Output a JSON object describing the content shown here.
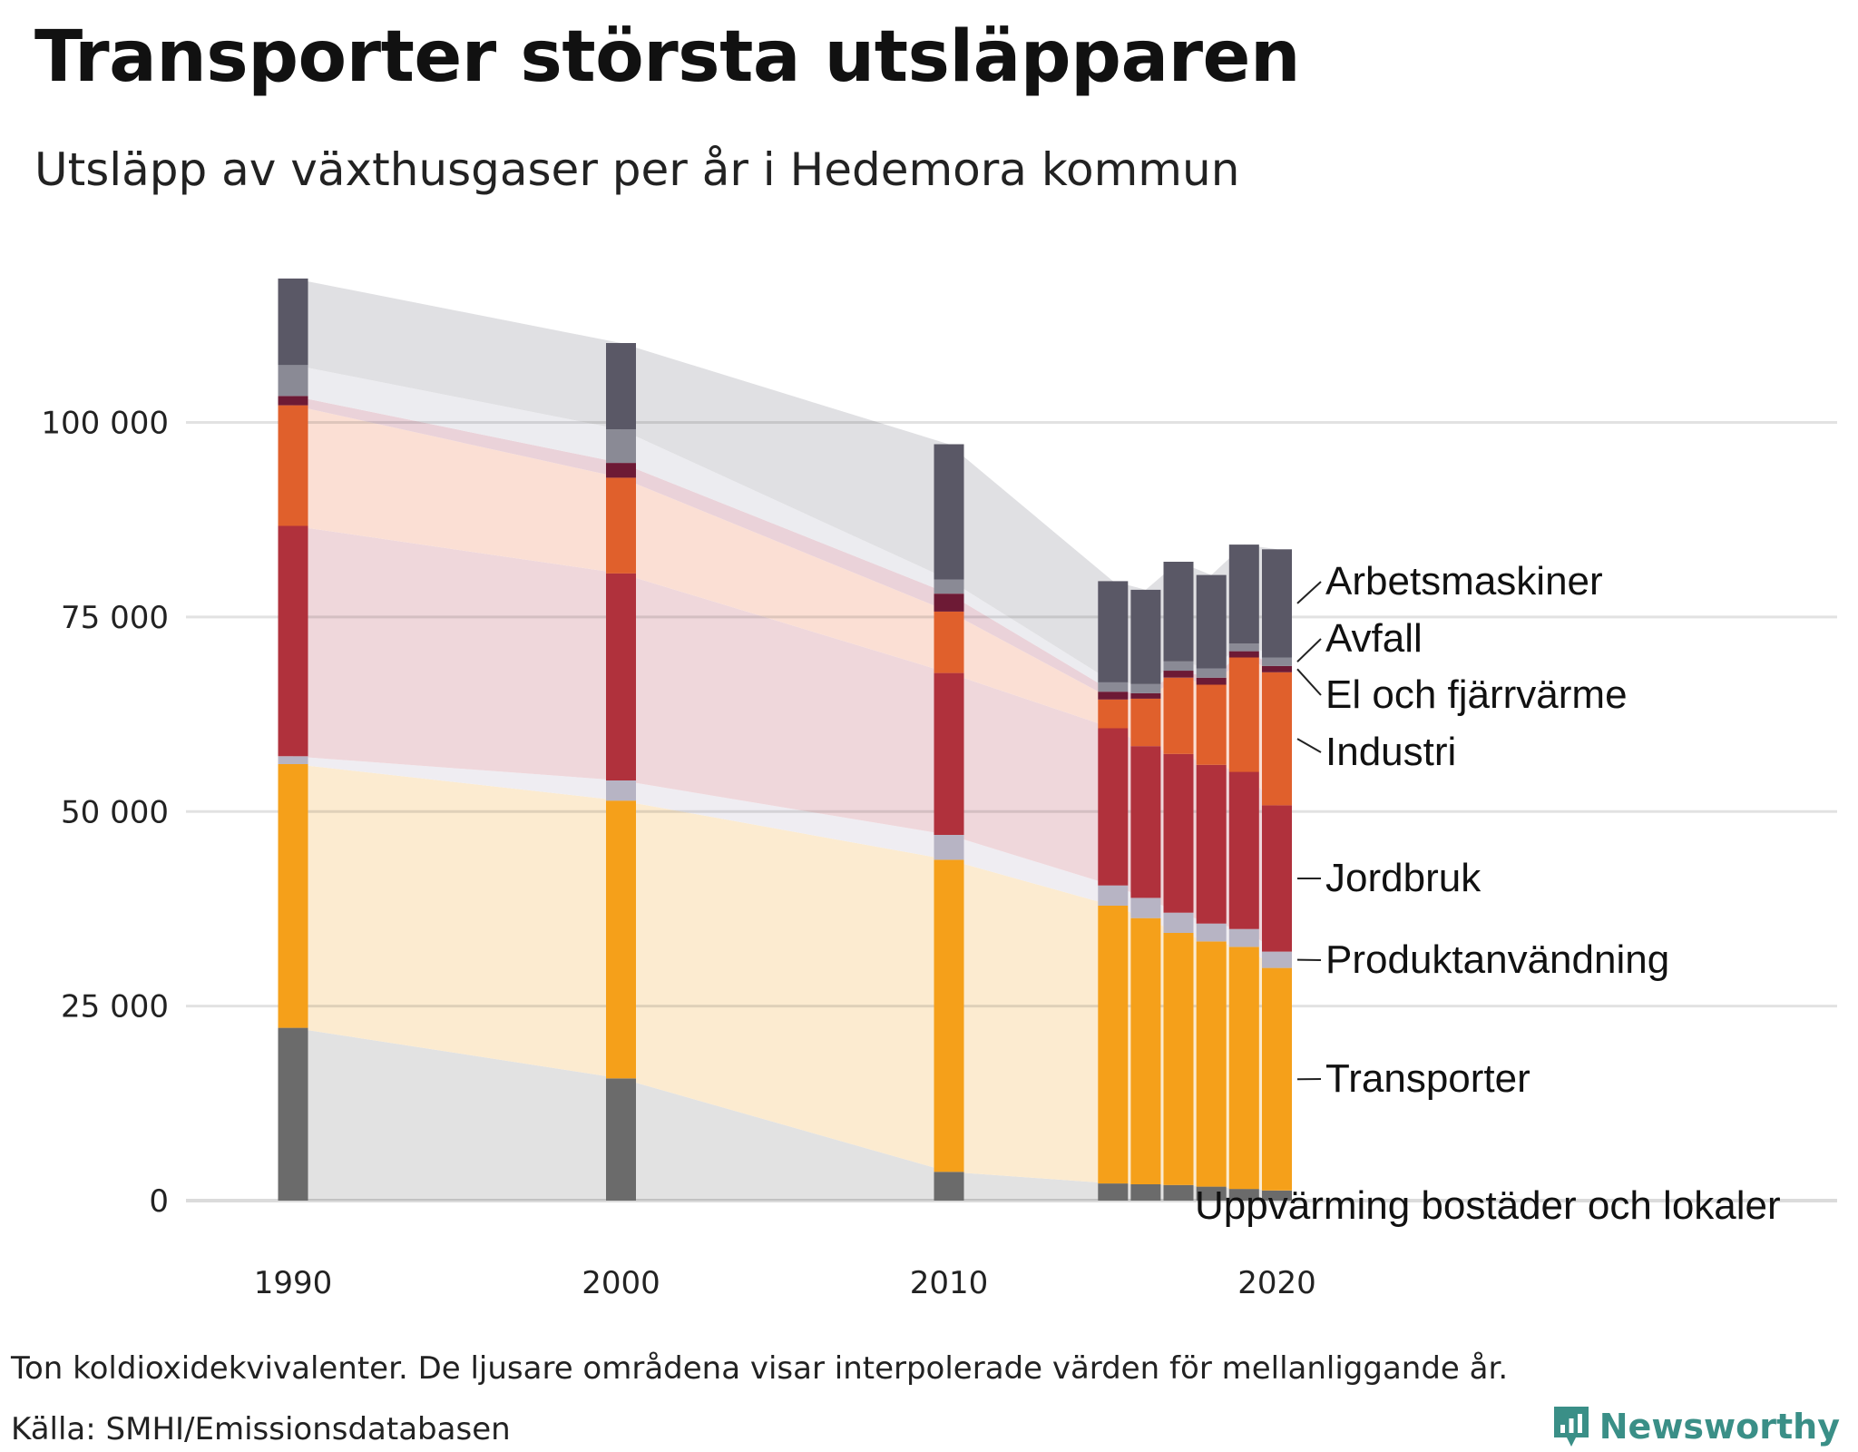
{
  "title": "Transporter största utsläpparen",
  "subtitle": "Utsläpp av växthusgaser per år i Hedemora kommun",
  "footnote": "Ton koldioxidekvivalenter. De ljusare områdena visar interpolerade värden för mellanliggande år.",
  "source": "Källa: SMHI/Emissionsdatabasen",
  "brand": {
    "name": "Newsworthy",
    "icon": "newsworthy-logo-icon",
    "color": "#3a8f87"
  },
  "chart_data": {
    "type": "bar",
    "stacked": true,
    "title": "Transporter största utsläpparen",
    "subtitle": "Utsläpp av växthusgaser per år i Hedemora kommun",
    "xlabel": "",
    "ylabel": "Ton koldioxidekvivalenter",
    "x_ticks": [
      "1990",
      "2000",
      "2010",
      "2020"
    ],
    "x_range": [
      1987,
      2035
    ],
    "y_ticks": [
      0,
      25000,
      50000,
      75000,
      100000
    ],
    "y_tick_labels": [
      "0",
      "25 000",
      "50 000",
      "75 000",
      "100 000"
    ],
    "ylim": [
      0,
      118500
    ],
    "grid": true,
    "legend": "right (direct labels)",
    "years": [
      1990,
      2000,
      2010,
      2015,
      2016,
      2017,
      2018,
      2019,
      2020
    ],
    "series": [
      {
        "name": "Uppvärming bostäder och lokaler",
        "color": "#6b6b6b",
        "band": "#e2e2e2",
        "values": [
          22200,
          15700,
          3700,
          2200,
          2100,
          2000,
          1800,
          1500,
          1300
        ]
      },
      {
        "name": "Transporter",
        "color": "#f5a01a",
        "band": "#fcebd0",
        "values": [
          33900,
          35700,
          40100,
          35700,
          34200,
          32400,
          31500,
          31100,
          28600
        ]
      },
      {
        "name": "Produktanvändning",
        "color": "#b7b4c4",
        "band": "#efedf2",
        "values": [
          1000,
          2600,
          3200,
          2600,
          2600,
          2600,
          2300,
          2300,
          2100
        ]
      },
      {
        "name": "Jordbruk",
        "color": "#b0313c",
        "band": "#efd7db",
        "values": [
          29600,
          26600,
          20800,
          20200,
          19500,
          20400,
          20400,
          20200,
          18800
        ]
      },
      {
        "name": "Industri",
        "color": "#e0602c",
        "band": "#fbdfd4",
        "values": [
          15500,
          12300,
          7900,
          3700,
          6100,
          9800,
          10300,
          14700,
          17100
        ]
      },
      {
        "name": "El och fjärrvärme",
        "color": "#6d1a35",
        "band": "#ead2d9",
        "values": [
          1200,
          1900,
          2300,
          1000,
          700,
          900,
          900,
          800,
          800
        ]
      },
      {
        "name": "Avfall",
        "color": "#8a8a95",
        "band": "#ececf0",
        "values": [
          4000,
          4300,
          1800,
          1200,
          1200,
          1200,
          1200,
          1000,
          1100
        ]
      },
      {
        "name": "Arbetsmaskiner",
        "color": "#5a5866",
        "band": "#e0e0e3",
        "values": [
          11100,
          11100,
          17400,
          13000,
          12100,
          12800,
          12000,
          12700,
          13900
        ]
      }
    ]
  }
}
